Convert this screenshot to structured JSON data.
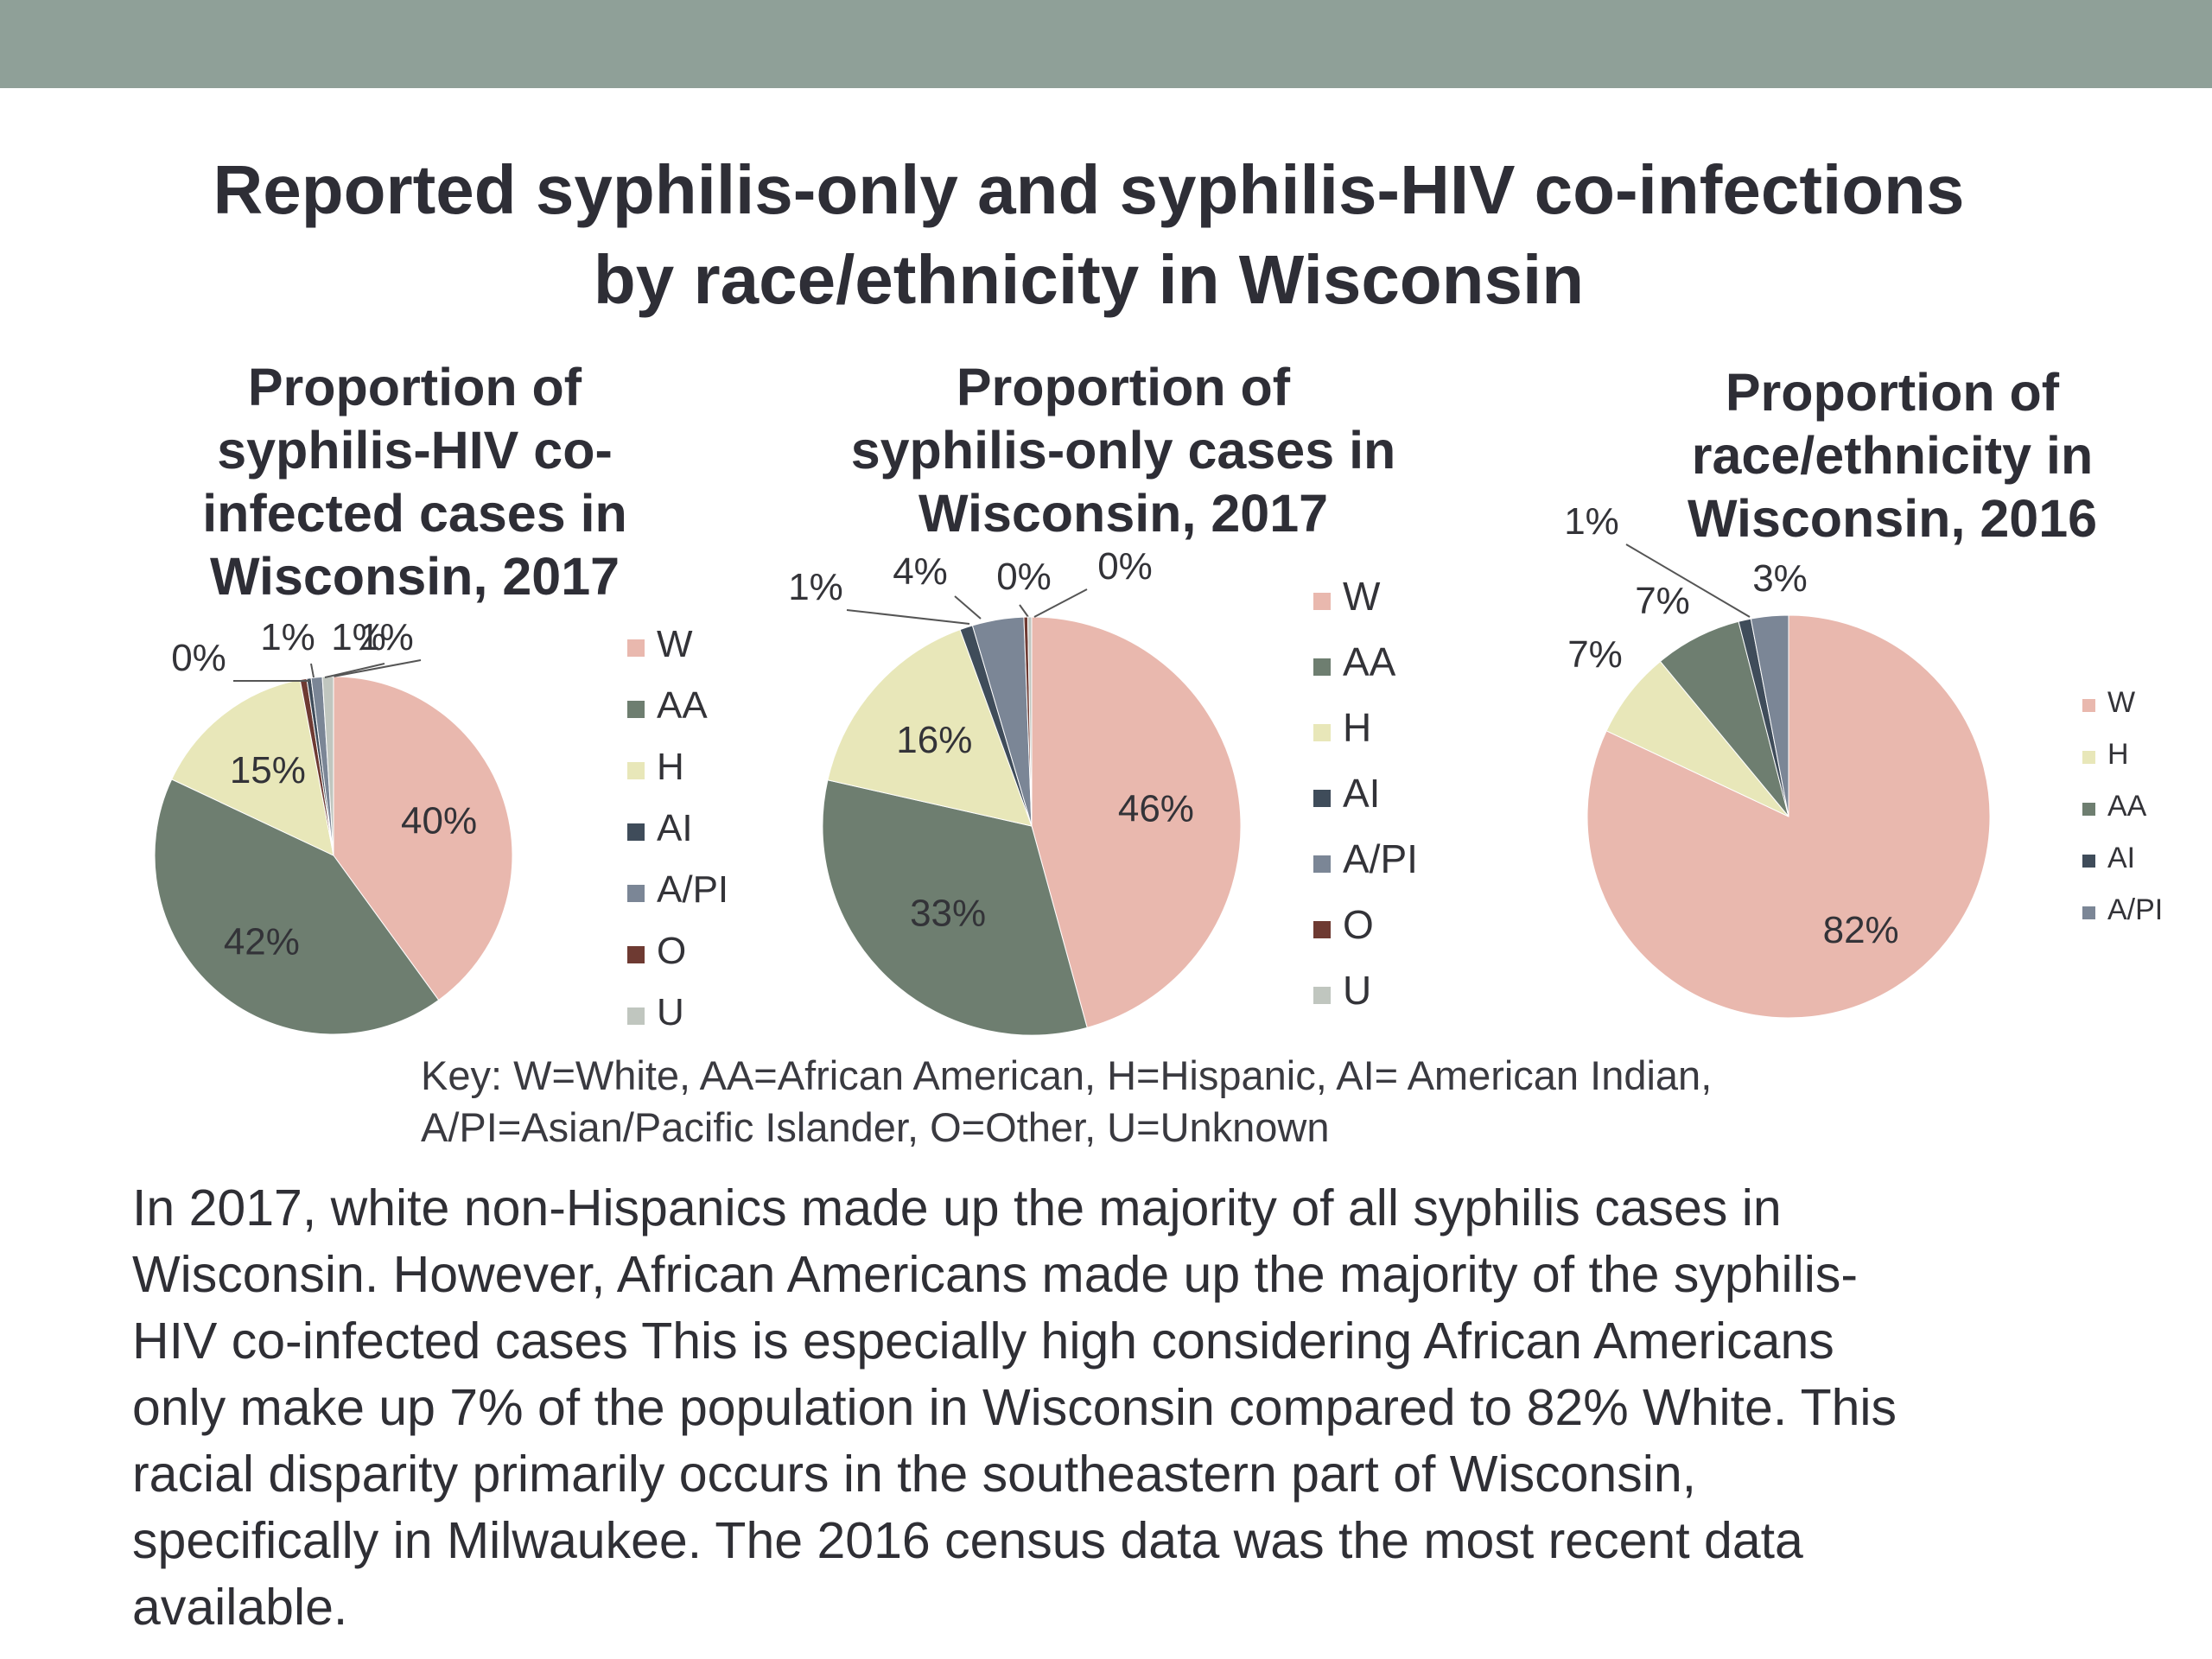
{
  "slide": {
    "title_lines": [
      "Reported syphilis-only and syphilis-HIV co-infections",
      "by race/ethnicity in Wisconsin"
    ],
    "key_lines": [
      "Key: W=White, AA=African American, H=Hispanic, AI= American Indian,",
      "A/PI=Asian/Pacific Islander, O=Other, U=Unknown"
    ],
    "body_lines": [
      "In 2017, white non-Hispanics made up the majority of all syphilis cases in",
      "Wisconsin. However, African Americans made up the majority of the syphilis-",
      "HIV co-infected cases This is especially high considering African Americans",
      "only make up 7% of the population in Wisconsin compared to 82% White. This",
      "racial disparity primarily occurs in the southeastern part of Wisconsin,",
      "specifically in Milwaukee. The 2016 census data was the most recent data",
      "available."
    ],
    "colors": {
      "W": "#e9b8ae",
      "AA": "#6e7e70",
      "H": "#e8e7b9",
      "AI": "#3f4c5a",
      "A/PI": "#7b8696",
      "O": "#6e3a32",
      "U": "#c0c6bf",
      "top_bar": "#8fa098"
    }
  },
  "chart_data": [
    {
      "type": "pie",
      "title_lines": [
        "Proportion of",
        "syphilis-HIV co-",
        "infected cases in",
        "Wisconsin, 2017"
      ],
      "categories": [
        "W",
        "AA",
        "H",
        "O",
        "AI",
        "A/PI",
        "U"
      ],
      "values": [
        40,
        42,
        15,
        0.6,
        0.4,
        1,
        1
      ],
      "labels": [
        "40%",
        "42%",
        "15%",
        "1%",
        "0%",
        "1%",
        "1%"
      ],
      "legend": [
        "W",
        "AA",
        "H",
        "AI",
        "A/PI",
        "O",
        "U"
      ],
      "legend_position": "right"
    },
    {
      "type": "pie",
      "title_lines": [
        "Proportion of",
        "syphilis-only cases in",
        "Wisconsin, 2017"
      ],
      "categories": [
        "W",
        "AA",
        "H",
        "AI",
        "A/PI",
        "O",
        "U"
      ],
      "values": [
        46,
        33,
        16,
        1,
        4,
        0.3,
        0.3
      ],
      "labels": [
        "46%",
        "33%",
        "16%",
        "1%",
        "4%",
        "0%",
        "0%"
      ],
      "legend": [
        "W",
        "AA",
        "H",
        "AI",
        "A/PI",
        "O",
        "U"
      ],
      "legend_position": "right"
    },
    {
      "type": "pie",
      "title_lines": [
        "Proportion of",
        "race/ethnicity in",
        "Wisconsin, 2016"
      ],
      "categories": [
        "W",
        "H",
        "AA",
        "AI",
        "A/PI"
      ],
      "values": [
        82,
        7,
        7,
        1,
        3
      ],
      "labels": [
        "82%",
        "7%",
        "7%",
        "1%",
        "3%"
      ],
      "legend": [
        "W",
        "H",
        "AA",
        "AI",
        "A/PI"
      ],
      "legend_position": "right"
    }
  ]
}
